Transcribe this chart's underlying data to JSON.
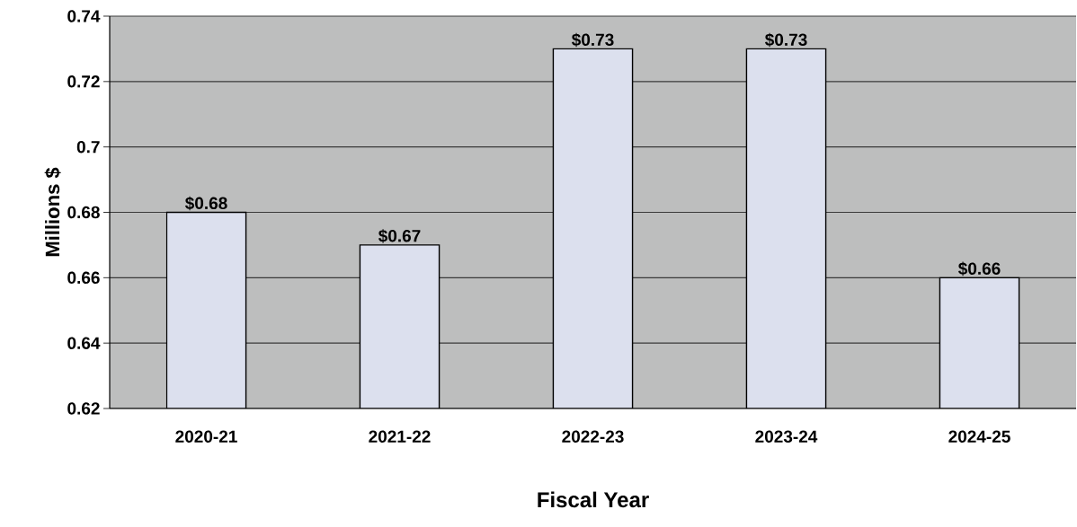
{
  "chart_data": {
    "type": "bar",
    "xlabel": "Fiscal Year",
    "ylabel": "Millions $",
    "categories": [
      "2020-21",
      "2021-22",
      "2022-23",
      "2023-24",
      "2024-25"
    ],
    "values": [
      0.68,
      0.67,
      0.73,
      0.73,
      0.66
    ],
    "value_labels": [
      "$0.68",
      "$0.67",
      "$0.73",
      "$0.73",
      "$0.66"
    ],
    "color": "#dce0ee",
    "ylim": [
      0.62,
      0.74
    ],
    "yticks": [
      0.62,
      0.64,
      0.66,
      0.68,
      0.7,
      0.72,
      0.74
    ],
    "grid": "y"
  }
}
